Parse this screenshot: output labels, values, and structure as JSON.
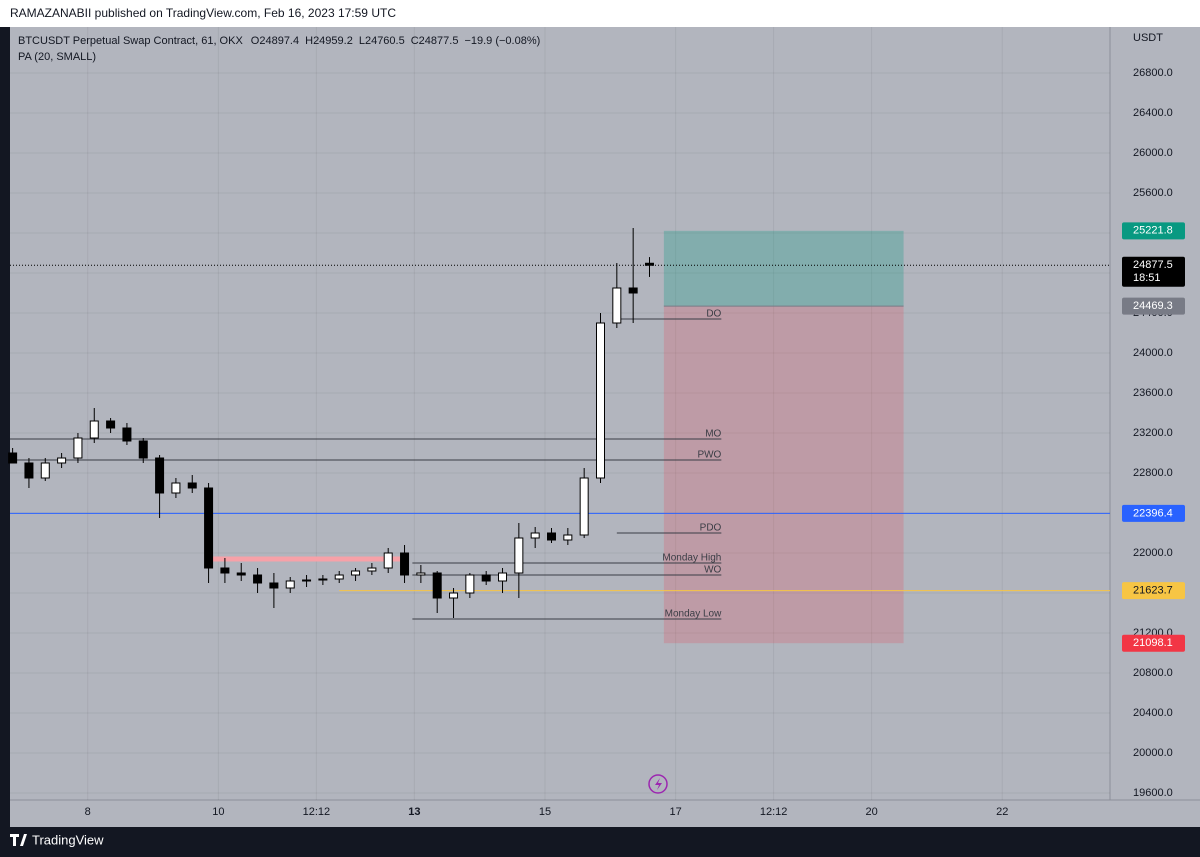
{
  "header": "RAMAZANABII published on TradingView.com, Feb 16, 2023 17:59 UTC",
  "footer": "TradingView",
  "chart_data": {
    "type": "candlestick",
    "title": "BTCUSDT Perpetual Swap Contract, 61, OKX",
    "ohlc_labels": [
      "O",
      "H",
      "L",
      "C"
    ],
    "change": "−19.9 (−0.08%)",
    "indicator": "PA (20, SMALL)",
    "currency": "USDT",
    "x": [
      6.85,
      7.1,
      7.35,
      7.6,
      7.85,
      8.1,
      8.35,
      8.6,
      8.85,
      9.1,
      9.35,
      9.6,
      9.85,
      10.1,
      10.35,
      10.6,
      10.85,
      11.1,
      11.35,
      11.6,
      11.85,
      12.1,
      12.35,
      12.6,
      12.85,
      13.1,
      13.35,
      13.6,
      13.85,
      14.1,
      14.35,
      14.6,
      14.85,
      15.1,
      15.35,
      15.6,
      15.85,
      16.1,
      16.35,
      16.6
    ],
    "open": [
      23000,
      22900,
      22750,
      22900,
      22950,
      23150,
      23320,
      23250,
      23120,
      22950,
      22600,
      22700,
      22650,
      21850,
      21800,
      21780,
      21700,
      21650,
      21720,
      21730,
      21740,
      21780,
      21820,
      21850,
      22000,
      21780,
      21800,
      21550,
      21600,
      21780,
      21720,
      21800,
      22150,
      22200,
      22130,
      22180,
      22750,
      24300,
      24650,
      24897.4
    ],
    "high": [
      23050,
      22950,
      22950,
      23000,
      23200,
      23450,
      23350,
      23300,
      23150,
      22980,
      22750,
      22780,
      22700,
      21950,
      21900,
      21850,
      21800,
      21760,
      21780,
      21780,
      21820,
      21850,
      21900,
      22050,
      22080,
      21880,
      21820,
      21650,
      21800,
      21820,
      21850,
      22300,
      22260,
      22250,
      22250,
      22850,
      24400,
      24900,
      25250,
      24959.2
    ],
    "low": [
      22950,
      22650,
      22720,
      22850,
      22900,
      23100,
      23200,
      23080,
      22900,
      22350,
      22550,
      22600,
      21700,
      21700,
      21720,
      21600,
      21450,
      21600,
      21660,
      21680,
      21700,
      21720,
      21780,
      21800,
      21700,
      21700,
      21400,
      21350,
      21550,
      21680,
      21600,
      21550,
      22050,
      22100,
      22080,
      22150,
      22700,
      24250,
      24300,
      24760.5
    ],
    "close": [
      22900,
      22750,
      22900,
      22950,
      23150,
      23320,
      23250,
      23120,
      22950,
      22600,
      22700,
      22650,
      21850,
      21800,
      21780,
      21700,
      21650,
      21720,
      21730,
      21740,
      21780,
      21820,
      21850,
      22000,
      21780,
      21800,
      21550,
      21600,
      21780,
      21720,
      21800,
      22150,
      22200,
      22130,
      22180,
      22750,
      24300,
      24650,
      24600,
      24877.5
    ],
    "xlim": [
      6.81,
      23.65
    ],
    "ylim": [
      19530,
      27260
    ],
    "xticks": [
      8,
      10,
      {
        "value": 11.5,
        "label": "12:12"
      },
      13,
      15,
      17,
      {
        "value": 18.5,
        "label": "12:12"
      },
      20,
      22
    ],
    "yticks": [
      {
        "value": 19600,
        "label": "19600.0"
      },
      {
        "value": 20000,
        "label": "20000.0"
      },
      {
        "value": 20400,
        "label": "20400.0"
      },
      {
        "value": 20800,
        "label": "20800.0"
      },
      {
        "value": 21200,
        "label": "21200.0"
      },
      {
        "value": 21600,
        "label": "21600.0"
      },
      {
        "value": 22000,
        "label": "22000.0"
      },
      {
        "value": 22400,
        "label": "22400.0"
      },
      {
        "value": 22800,
        "label": "22800.0"
      },
      {
        "value": 23200,
        "label": "23200.0"
      },
      {
        "value": 23600,
        "label": "23600.0"
      },
      {
        "value": 24000,
        "label": "24000.0"
      },
      {
        "value": 24400,
        "label": "24400.0"
      },
      {
        "value": 24800,
        "label": "24800.0"
      },
      {
        "value": 25200,
        "label": "25200.0"
      },
      {
        "value": 25600,
        "label": "25600.0"
      },
      {
        "value": 26000,
        "label": "26000.0"
      },
      {
        "value": 26400,
        "label": "26400.0"
      },
      {
        "value": 26800,
        "label": "26800.0"
      }
    ],
    "grid": true,
    "levels": [
      {
        "label": "DO",
        "value": 24340,
        "x_start": 16.1,
        "x_end": 17.7
      },
      {
        "label": "MO",
        "value": 23140,
        "x_start": 6.81,
        "x_end": 17.7
      },
      {
        "label": "PWO",
        "value": 22930,
        "x_start": 6.81,
        "x_end": 17.7
      },
      {
        "label": "PDO",
        "value": 22200,
        "x_start": 16.1,
        "x_end": 17.7
      },
      {
        "label": "Monday High",
        "value": 21900,
        "x_start": 12.97,
        "x_end": 17.7
      },
      {
        "label": "WO",
        "value": 21780,
        "x_start": 12.97,
        "x_end": 17.7
      },
      {
        "label": "Monday Low",
        "value": 21340,
        "x_start": 12.97,
        "x_end": 17.7
      }
    ],
    "zones": [
      {
        "value": 21940,
        "x_start": 9.87,
        "x_end": 12.85,
        "color": "#f7a1a8"
      }
    ],
    "position": {
      "target": 25221.8,
      "entry": 24469.3,
      "stop": 21098.1,
      "x_start": 16.82,
      "x_end": 20.49
    },
    "price_labels": [
      {
        "value": 25221.8,
        "color": "#089981"
      },
      {
        "value": 24877.5,
        "color": "#000000",
        "line": "dotted"
      },
      {
        "value": 24469.3,
        "color": "#787b86"
      },
      {
        "value": 22396.4,
        "color": "#2962ff",
        "line": "solid"
      },
      {
        "value": 21623.7,
        "color": "#f7c544",
        "line": "solid",
        "line_from": 11.85
      },
      {
        "value": 21098.1,
        "color": "#f23645"
      }
    ],
    "countdown": "18:51"
  }
}
